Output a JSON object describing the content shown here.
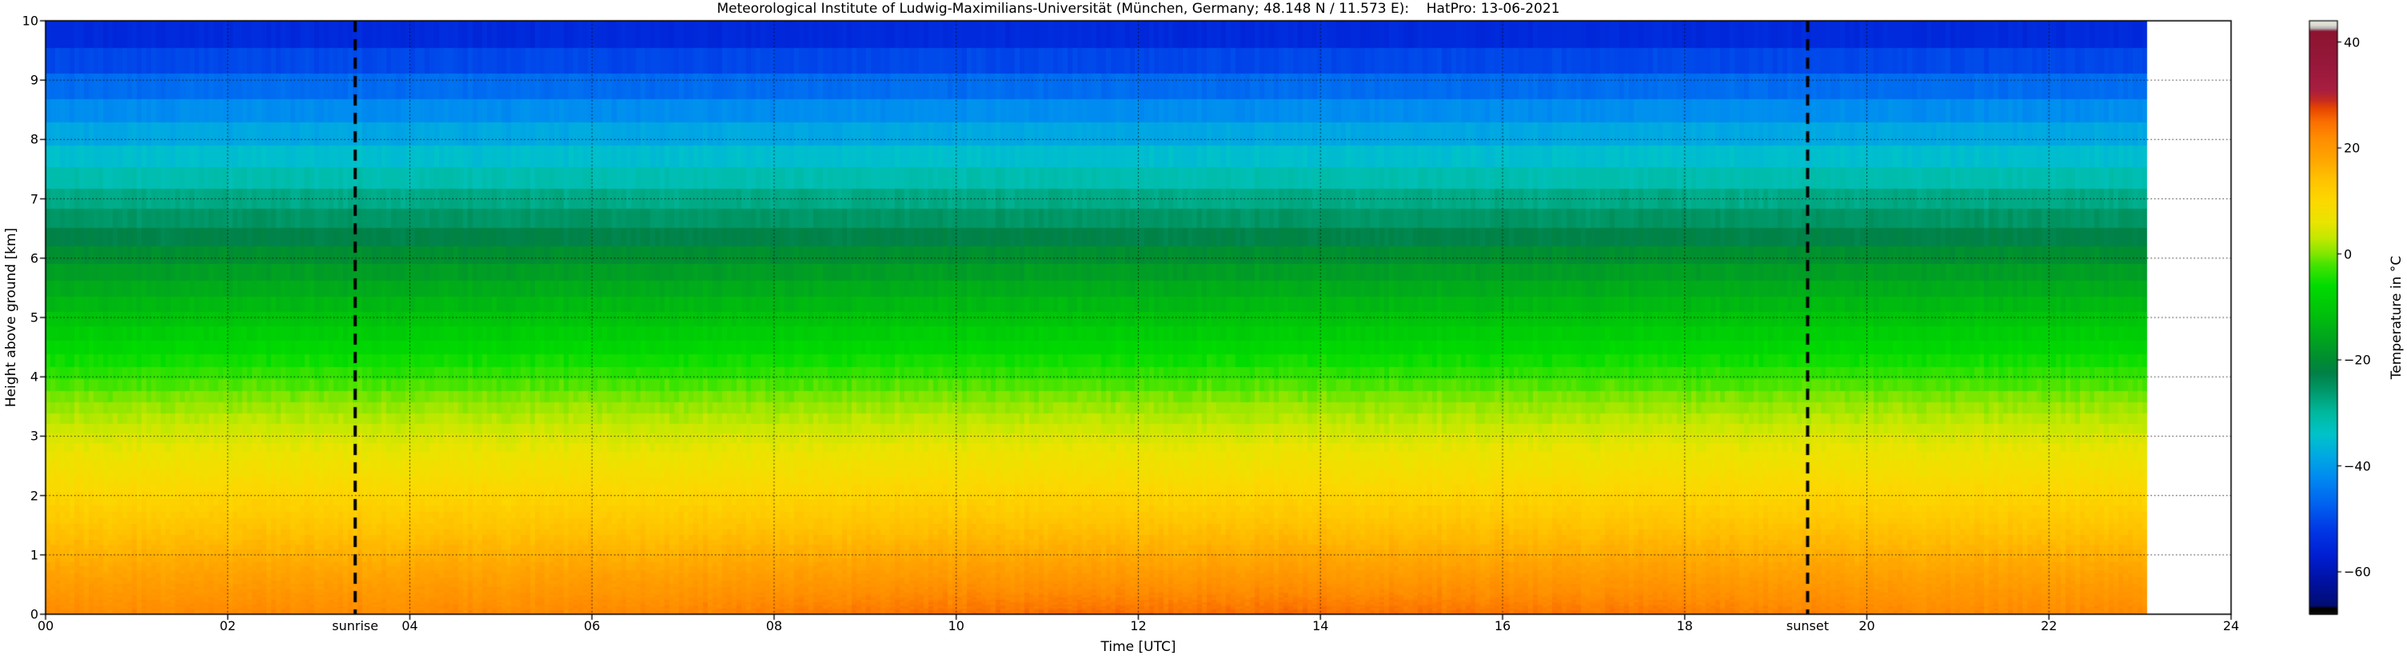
{
  "chart_data": {
    "type": "heatmap",
    "title": "Meteorological Institute of Ludwig-Maximilians-Universität (München, Germany; 48.148 N / 11.573 E):    HatPro: 13-06-2021",
    "xlabel": "Time [UTC]",
    "ylabel": "Height above ground [km]",
    "xlim": [
      0,
      24
    ],
    "ylim": [
      0,
      10
    ],
    "grid": "dotted",
    "x_ticks": [
      0,
      2,
      4,
      6,
      8,
      10,
      12,
      14,
      16,
      18,
      20,
      22,
      24
    ],
    "x_tick_labels": [
      "00",
      "02",
      "04",
      "06",
      "08",
      "10",
      "12",
      "14",
      "16",
      "18",
      "20",
      "22",
      "24"
    ],
    "y_ticks": [
      0,
      1,
      2,
      3,
      4,
      5,
      6,
      7,
      8,
      9,
      10
    ],
    "y_tick_labels": [
      "0",
      "1",
      "2",
      "3",
      "4",
      "5",
      "6",
      "7",
      "8",
      "9",
      "10"
    ],
    "data_time_range_utc": [
      0,
      23.08
    ],
    "annotations": {
      "sunrise": {
        "label": "sunrise",
        "time_utc": 3.4
      },
      "sunset": {
        "label": "sunset",
        "time_utc": 19.35
      }
    },
    "colorbar": {
      "label": "Temperature in °C",
      "ticks": [
        40,
        20,
        0,
        -20,
        -40,
        -60
      ],
      "tick_labels": [
        "40",
        "20",
        "0",
        "−20",
        "−40",
        "−60"
      ],
      "vmin": -68,
      "vmax": 44,
      "stops": [
        [
          -68,
          "#0d0d0d"
        ],
        [
          -66.9,
          "#000000"
        ],
        [
          -66.4,
          "#000d73"
        ],
        [
          -62,
          "#0011a0"
        ],
        [
          -57,
          "#001ed2"
        ],
        [
          -52,
          "#0038e6"
        ],
        [
          -47,
          "#0064f0"
        ],
        [
          -42,
          "#008cf0"
        ],
        [
          -38,
          "#00aae1"
        ],
        [
          -34,
          "#00c3c8"
        ],
        [
          -30,
          "#00b99f"
        ],
        [
          -26,
          "#009a6b"
        ],
        [
          -22.5,
          "#008147"
        ],
        [
          -20,
          "#008c32"
        ],
        [
          -16,
          "#00a51e"
        ],
        [
          -11,
          "#00c30a"
        ],
        [
          -6,
          "#00dc00"
        ],
        [
          -2,
          "#46e400"
        ],
        [
          0,
          "#82e600"
        ],
        [
          3,
          "#c3e800"
        ],
        [
          6,
          "#eae400"
        ],
        [
          10,
          "#fcd800"
        ],
        [
          14,
          "#ffc300"
        ],
        [
          18,
          "#ffa500"
        ],
        [
          22,
          "#ff8c00"
        ],
        [
          25,
          "#fa6e00"
        ],
        [
          27.5,
          "#e64500"
        ],
        [
          29,
          "#c52b20"
        ],
        [
          31,
          "#a81e40"
        ],
        [
          36,
          "#96173a"
        ],
        [
          42,
          "#8c1430"
        ],
        [
          42.6,
          "#b4b4b4"
        ],
        [
          43.2,
          "#dcdcd2"
        ],
        [
          44,
          "#e8e8e0"
        ]
      ]
    },
    "temperature_profile": {
      "heights_km": [
        0,
        0.5,
        1,
        1.5,
        2,
        2.5,
        3,
        3.5,
        4,
        4.5,
        5,
        5.5,
        6,
        6.5,
        7,
        7.5,
        8,
        8.5,
        9,
        9.5,
        10
      ],
      "temps_c": [
        22,
        19.5,
        16.5,
        13.5,
        10.5,
        7.5,
        4.5,
        1,
        -3,
        -7,
        -11,
        -15,
        -19,
        -24,
        -28,
        -33,
        -37.5,
        -42,
        -47,
        -52,
        -57
      ]
    },
    "diurnal_surface_warming_c": 3,
    "line_color": "#000000",
    "background_color": "#ffffff"
  }
}
